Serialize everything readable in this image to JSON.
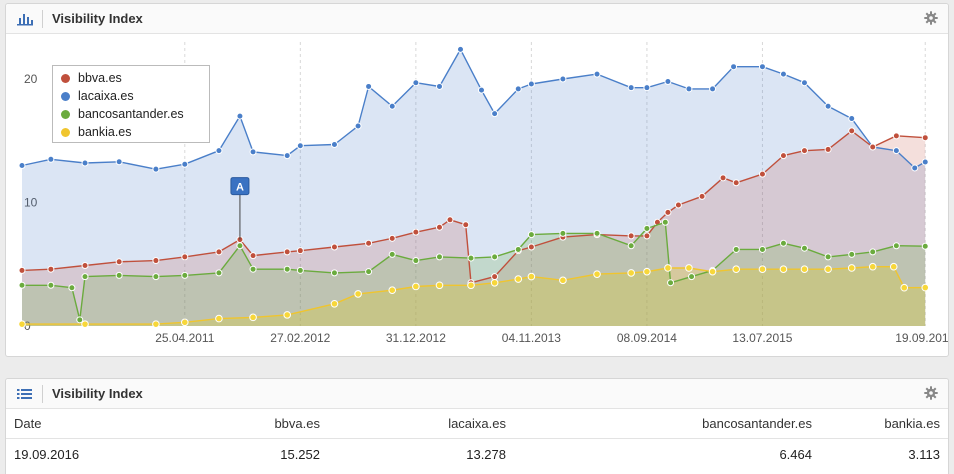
{
  "panel1": {
    "title": "Visibility Index",
    "icon": "bar-chart-icon",
    "settings_icon": "gear-icon"
  },
  "panel2": {
    "title": "Visibility Index",
    "icon": "list-icon",
    "settings_icon": "gear-icon"
  },
  "chart_data": {
    "type": "area",
    "title": "",
    "xlabel": "",
    "ylabel": "",
    "ylim": [
      0,
      23
    ],
    "xlim": [
      "2010-02-15",
      "2016-10-15"
    ],
    "yticks": [
      0,
      10,
      20
    ],
    "xticks": [
      "25.04.2011",
      "27.02.2012",
      "31.12.2012",
      "04.11.2013",
      "08.09.2014",
      "13.07.2015",
      "19.09.2016"
    ],
    "grid": "vertical",
    "legend_position": "top-left",
    "annotations": [
      {
        "label": "A",
        "x": "2011-09-19",
        "y": 7.0
      }
    ],
    "series": [
      {
        "name": "bbva.es",
        "color": "#c0503c",
        "points": [
          [
            "2010-02-15",
            4.5
          ],
          [
            "2010-05-03",
            4.6
          ],
          [
            "2010-08-02",
            4.9
          ],
          [
            "2010-11-01",
            5.2
          ],
          [
            "2011-02-07",
            5.3
          ],
          [
            "2011-04-25",
            5.6
          ],
          [
            "2011-07-25",
            6.0
          ],
          [
            "2011-09-19",
            7.0
          ],
          [
            "2011-10-24",
            5.7
          ],
          [
            "2012-01-23",
            6.0
          ],
          [
            "2012-02-27",
            6.1
          ],
          [
            "2012-05-28",
            6.4
          ],
          [
            "2012-08-27",
            6.7
          ],
          [
            "2012-10-29",
            7.1
          ],
          [
            "2012-12-31",
            7.6
          ],
          [
            "2013-03-04",
            8.0
          ],
          [
            "2013-04-01",
            8.6
          ],
          [
            "2013-05-13",
            8.2
          ],
          [
            "2013-05-27",
            3.5
          ],
          [
            "2013-07-29",
            4.0
          ],
          [
            "2013-09-30",
            6.1
          ],
          [
            "2013-11-04",
            6.4
          ],
          [
            "2014-01-27",
            7.2
          ],
          [
            "2014-04-28",
            7.4
          ],
          [
            "2014-07-28",
            7.3
          ],
          [
            "2014-09-08",
            7.3
          ],
          [
            "2014-10-06",
            8.4
          ],
          [
            "2014-11-03",
            9.2
          ],
          [
            "2014-12-01",
            9.8
          ],
          [
            "2015-02-02",
            10.5
          ],
          [
            "2015-03-30",
            12.0
          ],
          [
            "2015-05-04",
            11.6
          ],
          [
            "2015-07-13",
            12.3
          ],
          [
            "2015-09-07",
            13.8
          ],
          [
            "2015-11-02",
            14.2
          ],
          [
            "2016-01-04",
            14.3
          ],
          [
            "2016-03-07",
            15.8
          ],
          [
            "2016-05-02",
            14.5
          ],
          [
            "2016-07-04",
            15.4
          ],
          [
            "2016-09-19",
            15.25
          ]
        ]
      },
      {
        "name": "lacaixa.es",
        "color": "#4a7fc9",
        "points": [
          [
            "2010-02-15",
            13.0
          ],
          [
            "2010-05-03",
            13.5
          ],
          [
            "2010-08-02",
            13.2
          ],
          [
            "2010-11-01",
            13.3
          ],
          [
            "2011-02-07",
            12.7
          ],
          [
            "2011-04-25",
            13.1
          ],
          [
            "2011-07-25",
            14.2
          ],
          [
            "2011-09-19",
            17.0
          ],
          [
            "2011-10-24",
            14.1
          ],
          [
            "2012-01-23",
            13.8
          ],
          [
            "2012-02-27",
            14.6
          ],
          [
            "2012-05-28",
            14.7
          ],
          [
            "2012-07-30",
            16.2
          ],
          [
            "2012-08-27",
            19.4
          ],
          [
            "2012-10-29",
            17.8
          ],
          [
            "2012-12-31",
            19.7
          ],
          [
            "2013-03-04",
            19.4
          ],
          [
            "2013-04-29",
            22.4
          ],
          [
            "2013-06-24",
            19.1
          ],
          [
            "2013-07-29",
            17.2
          ],
          [
            "2013-09-30",
            19.2
          ],
          [
            "2013-11-04",
            19.6
          ],
          [
            "2014-01-27",
            20.0
          ],
          [
            "2014-04-28",
            20.4
          ],
          [
            "2014-07-28",
            19.3
          ],
          [
            "2014-09-08",
            19.3
          ],
          [
            "2014-11-03",
            19.8
          ],
          [
            "2014-12-29",
            19.2
          ],
          [
            "2015-03-02",
            19.2
          ],
          [
            "2015-04-27",
            21.0
          ],
          [
            "2015-07-13",
            21.0
          ],
          [
            "2015-09-07",
            20.4
          ],
          [
            "2015-11-02",
            19.7
          ],
          [
            "2016-01-04",
            17.8
          ],
          [
            "2016-03-07",
            16.8
          ],
          [
            "2016-05-02",
            14.5
          ],
          [
            "2016-07-04",
            14.2
          ],
          [
            "2016-08-22",
            12.8
          ],
          [
            "2016-09-19",
            13.28
          ]
        ]
      },
      {
        "name": "bancosantander.es",
        "color": "#6bab3e",
        "points": [
          [
            "2010-02-15",
            3.3
          ],
          [
            "2010-05-03",
            3.3
          ],
          [
            "2010-06-28",
            3.1
          ],
          [
            "2010-07-19",
            0.5
          ],
          [
            "2010-08-02",
            4.0
          ],
          [
            "2010-11-01",
            4.1
          ],
          [
            "2011-02-07",
            4.0
          ],
          [
            "2011-04-25",
            4.1
          ],
          [
            "2011-07-25",
            4.3
          ],
          [
            "2011-09-19",
            6.5
          ],
          [
            "2011-10-24",
            4.6
          ],
          [
            "2012-01-23",
            4.6
          ],
          [
            "2012-02-27",
            4.5
          ],
          [
            "2012-05-28",
            4.3
          ],
          [
            "2012-08-27",
            4.4
          ],
          [
            "2012-10-29",
            5.8
          ],
          [
            "2012-12-31",
            5.3
          ],
          [
            "2013-03-04",
            5.6
          ],
          [
            "2013-05-27",
            5.5
          ],
          [
            "2013-07-29",
            5.6
          ],
          [
            "2013-09-30",
            6.2
          ],
          [
            "2013-11-04",
            7.4
          ],
          [
            "2014-01-27",
            7.5
          ],
          [
            "2014-04-28",
            7.5
          ],
          [
            "2014-07-28",
            6.5
          ],
          [
            "2014-09-08",
            7.9
          ],
          [
            "2014-10-27",
            8.4
          ],
          [
            "2014-11-10",
            3.5
          ],
          [
            "2015-01-05",
            4.0
          ],
          [
            "2015-03-02",
            4.5
          ],
          [
            "2015-05-04",
            6.2
          ],
          [
            "2015-07-13",
            6.2
          ],
          [
            "2015-09-07",
            6.7
          ],
          [
            "2015-11-02",
            6.3
          ],
          [
            "2016-01-04",
            5.6
          ],
          [
            "2016-03-07",
            5.8
          ],
          [
            "2016-05-02",
            6.0
          ],
          [
            "2016-07-04",
            6.5
          ],
          [
            "2016-09-19",
            6.46
          ]
        ]
      },
      {
        "name": "bankia.es",
        "color": "#f0c52e",
        "points": [
          [
            "2010-02-15",
            0.15
          ],
          [
            "2010-08-02",
            0.15
          ],
          [
            "2011-02-07",
            0.15
          ],
          [
            "2011-04-25",
            0.3
          ],
          [
            "2011-07-25",
            0.6
          ],
          [
            "2011-10-24",
            0.7
          ],
          [
            "2012-01-23",
            0.9
          ],
          [
            "2012-05-28",
            1.8
          ],
          [
            "2012-07-30",
            2.6
          ],
          [
            "2012-10-29",
            2.9
          ],
          [
            "2012-12-31",
            3.2
          ],
          [
            "2013-03-04",
            3.3
          ],
          [
            "2013-05-27",
            3.3
          ],
          [
            "2013-07-29",
            3.5
          ],
          [
            "2013-09-30",
            3.8
          ],
          [
            "2013-11-04",
            4.0
          ],
          [
            "2014-01-27",
            3.7
          ],
          [
            "2014-04-28",
            4.2
          ],
          [
            "2014-07-28",
            4.3
          ],
          [
            "2014-09-08",
            4.4
          ],
          [
            "2014-11-03",
            4.7
          ],
          [
            "2014-12-29",
            4.7
          ],
          [
            "2015-03-02",
            4.4
          ],
          [
            "2015-05-04",
            4.6
          ],
          [
            "2015-07-13",
            4.6
          ],
          [
            "2015-09-07",
            4.6
          ],
          [
            "2015-11-02",
            4.6
          ],
          [
            "2016-01-04",
            4.6
          ],
          [
            "2016-03-07",
            4.7
          ],
          [
            "2016-05-02",
            4.8
          ],
          [
            "2016-06-27",
            4.8
          ],
          [
            "2016-07-25",
            3.1
          ],
          [
            "2016-09-19",
            3.11
          ]
        ]
      }
    ]
  },
  "table": {
    "headers": [
      "Date",
      "bbva.es",
      "lacaixa.es",
      "bancosantander.es",
      "bankia.es"
    ],
    "rows": [
      [
        "19.09.2016",
        "15.252",
        "13.278",
        "6.464",
        "3.113"
      ]
    ]
  }
}
